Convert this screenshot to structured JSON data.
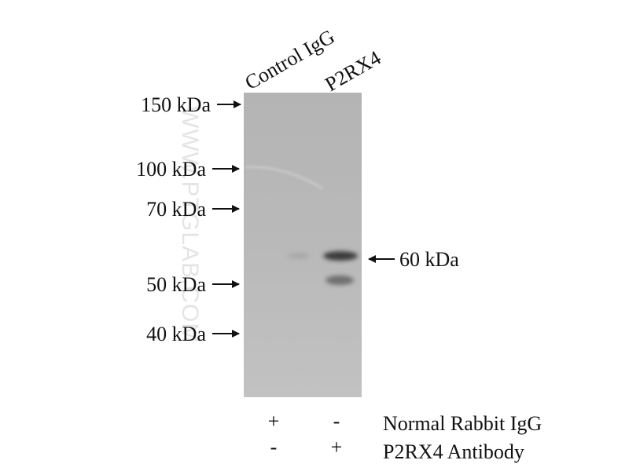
{
  "lane_labels": [
    "Control IgG",
    "P2RX4"
  ],
  "markers": [
    "150 kDa",
    "100 kDa",
    "70 kDa",
    "50 kDa",
    "40 kDa"
  ],
  "band_label": "60 kDa",
  "conditions": {
    "rows": [
      {
        "label": "Normal Rabbit IgG",
        "lanes": [
          "+",
          "-"
        ]
      },
      {
        "label": "P2RX4 Antibody",
        "lanes": [
          "-",
          "+"
        ]
      }
    ]
  },
  "watermark": "WWW.PTGLAB.COM"
}
